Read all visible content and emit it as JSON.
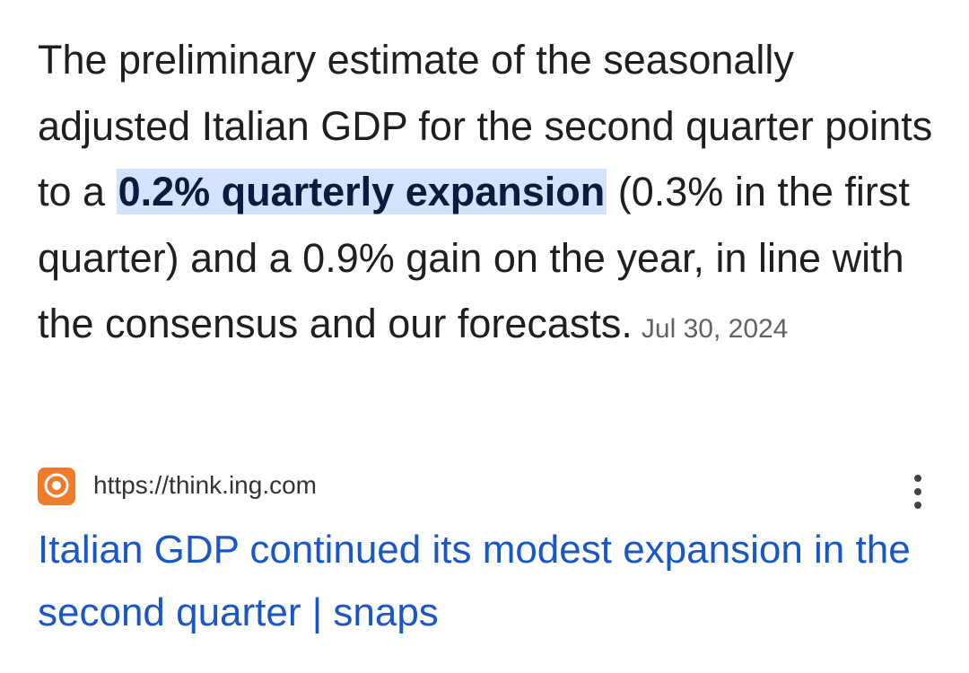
{
  "snippet": {
    "before": "The preliminary estimate of the seasonally adjusted Italian GDP for the second quarter points to a ",
    "highlight": "0.2% quarterly expansion",
    "after": " (0.3% in the first quarter) and a 0.9% gain on the year, in line with the consensus and our forecasts.",
    "date": "Jul 30, 2024"
  },
  "source": {
    "url": "https://think.ing.com",
    "title": "Italian GDP continued its modest expansion in the second quarter | snaps"
  }
}
